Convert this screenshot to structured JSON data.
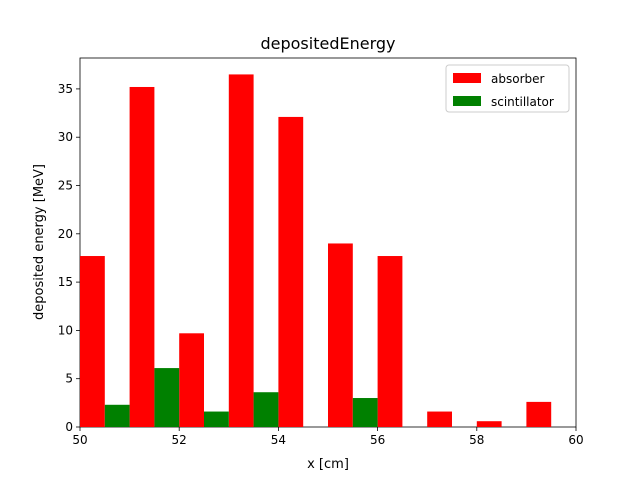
{
  "chart_data": {
    "type": "bar",
    "title": "depositedEnergy",
    "xlabel": "x [cm]",
    "ylabel": "deposited energy [MeV]",
    "xlim": [
      50,
      60
    ],
    "ylim": [
      0,
      38.2
    ],
    "xticks": [
      50,
      52,
      54,
      56,
      58,
      60
    ],
    "yticks": [
      0,
      5,
      10,
      15,
      20,
      25,
      30,
      35
    ],
    "grid": false,
    "legend_position": "top-right",
    "bar_width": 0.5,
    "series": [
      {
        "name": "absorber",
        "color": "#ff0000",
        "x": [
          50,
          51,
          52,
          53,
          54,
          55,
          56,
          57,
          58,
          59
        ],
        "values": [
          17.7,
          35.2,
          9.7,
          36.5,
          32.1,
          19.0,
          17.7,
          1.6,
          0.6,
          2.6
        ]
      },
      {
        "name": "scintillator",
        "color": "#008000",
        "x": [
          50.5,
          51.5,
          52.5,
          53.5,
          54.5,
          55.5,
          56.5,
          57.5,
          58.5,
          59.5
        ],
        "values": [
          2.3,
          6.1,
          1.6,
          3.6,
          0,
          3.0,
          0,
          0,
          0,
          0
        ]
      }
    ]
  }
}
